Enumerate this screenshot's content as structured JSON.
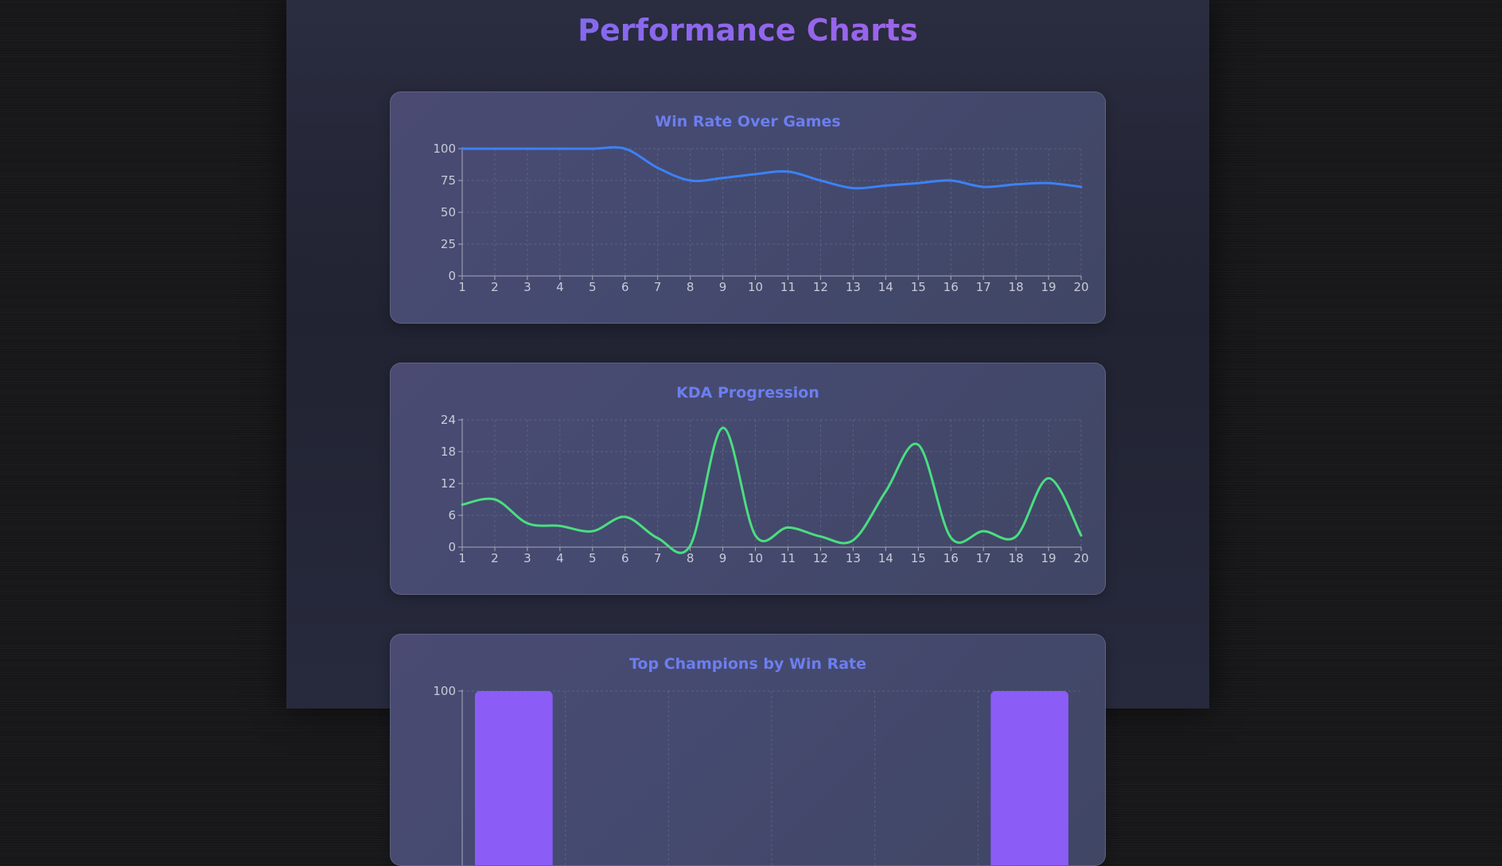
{
  "page": {
    "title": "Performance Charts"
  },
  "colors": {
    "background": "#171719",
    "panel": "#24273a",
    "card": "#464a70",
    "title_accent": "#6c7ef0",
    "win_rate_line": "#3b82f6",
    "kda_line": "#4ade80",
    "bar": "#8b5cf6"
  },
  "chart_data": [
    {
      "type": "line",
      "title": "Win Rate Over Games",
      "x": [
        1,
        2,
        3,
        4,
        5,
        6,
        7,
        8,
        9,
        10,
        11,
        12,
        13,
        14,
        15,
        16,
        17,
        18,
        19,
        20
      ],
      "series": [
        {
          "values": [
            100,
            100,
            100,
            100,
            100,
            100,
            85,
            75,
            77,
            80,
            82,
            75,
            69,
            71,
            73,
            75,
            70,
            72,
            73,
            70
          ],
          "color": "#3b82f6"
        }
      ],
      "yticks": [
        0,
        25,
        50,
        75,
        100
      ],
      "ylim": [
        0,
        100
      ],
      "grid": true
    },
    {
      "type": "line",
      "title": "KDA Progression",
      "x": [
        1,
        2,
        3,
        4,
        5,
        6,
        7,
        8,
        9,
        10,
        11,
        12,
        13,
        14,
        15,
        16,
        17,
        18,
        19,
        20
      ],
      "series": [
        {
          "values": [
            8,
            9,
            4.5,
            4,
            3,
            5.7,
            1.7,
            0.3,
            22.5,
            2.2,
            3.7,
            2,
            1.3,
            10.5,
            19.3,
            1.8,
            3,
            2,
            13,
            2.2
          ],
          "color": "#4ade80"
        }
      ],
      "yticks": [
        0,
        6,
        12,
        18,
        24
      ],
      "ylim": [
        0,
        24
      ],
      "grid": true
    },
    {
      "type": "bar",
      "title": "Top Champions by Win Rate",
      "yticks": [
        100
      ],
      "ylim": [
        0,
        100
      ],
      "values": [
        100,
        100
      ],
      "color": "#8b5cf6",
      "grid": true
    }
  ]
}
